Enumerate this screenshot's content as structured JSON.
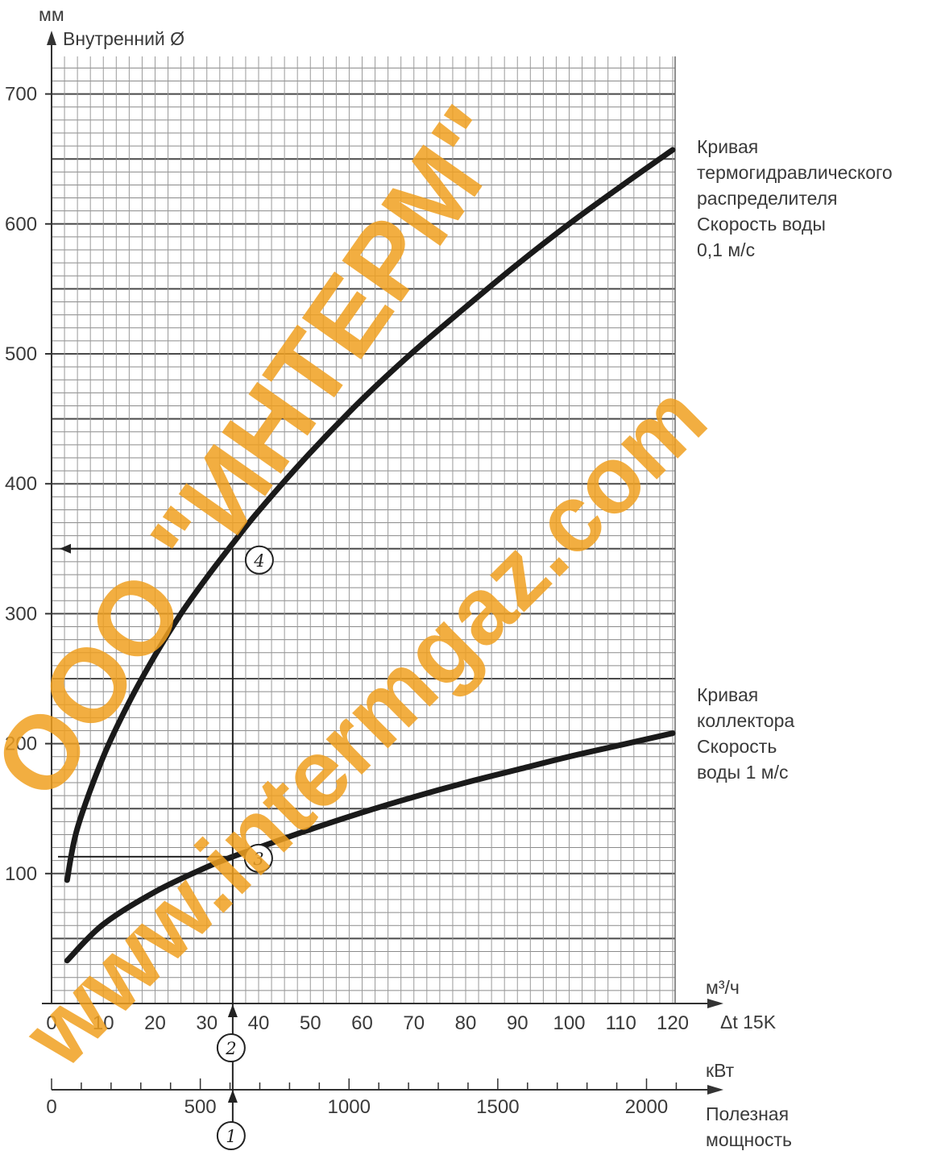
{
  "chart_data": {
    "type": "line",
    "y_unit": "мм",
    "ylabel": "Внутренний Ø",
    "ylim": [
      0,
      700
    ],
    "yticks": [
      100,
      200,
      300,
      400,
      500,
      600,
      700
    ],
    "x_unit": "м³/ч",
    "xlabel": "Δt 15K",
    "xlim": [
      0,
      120
    ],
    "xticks": [
      "0",
      "10",
      "20",
      "30",
      "40",
      "50",
      "60",
      "70",
      "80",
      "90",
      "100",
      "110",
      "120"
    ],
    "x2_unit": "кВт",
    "x2label_lines": [
      "Полезная",
      "мощность"
    ],
    "x2ticks": [
      "0",
      "500",
      "1000",
      "1500",
      "2000"
    ],
    "x2_values": [
      0,
      500,
      1000,
      1500,
      2000
    ],
    "x2_per_x": 17.4,
    "grid": true,
    "series": [
      {
        "name_lines": [
          "Кривая",
          "термогидравлического",
          "распределителя",
          "Скорость воды",
          "0,1 м/с"
        ],
        "x": [
          3,
          5,
          10,
          15,
          20,
          25,
          30,
          35,
          40,
          50,
          60,
          70,
          80,
          90,
          100,
          110,
          120
        ],
        "y": [
          95,
          135,
          190,
          232,
          268,
          300,
          328,
          354,
          379,
          424,
          465,
          502,
          536,
          569,
          600,
          629,
          657
        ]
      },
      {
        "name_lines": [
          "Кривая",
          "коллектора",
          "Скорость",
          "воды 1 м/с"
        ],
        "x": [
          3,
          10,
          20,
          30,
          35,
          40,
          50,
          60,
          70,
          80,
          90,
          100,
          110,
          120
        ],
        "y": [
          33,
          61,
          86,
          105,
          113,
          120,
          134,
          147,
          159,
          170,
          180,
          190,
          199,
          208
        ]
      }
    ],
    "example": {
      "power_kw": 600,
      "flow_m3h": 35,
      "result_collector_mm": 113,
      "result_distributor_mm": 350,
      "markers": [
        "1",
        "2",
        "3",
        "4"
      ]
    }
  },
  "watermark": {
    "line1": "ООО \"ИНТЕРМ\"",
    "line2": "www.intermgaz.com",
    "color": "#f0a020"
  }
}
